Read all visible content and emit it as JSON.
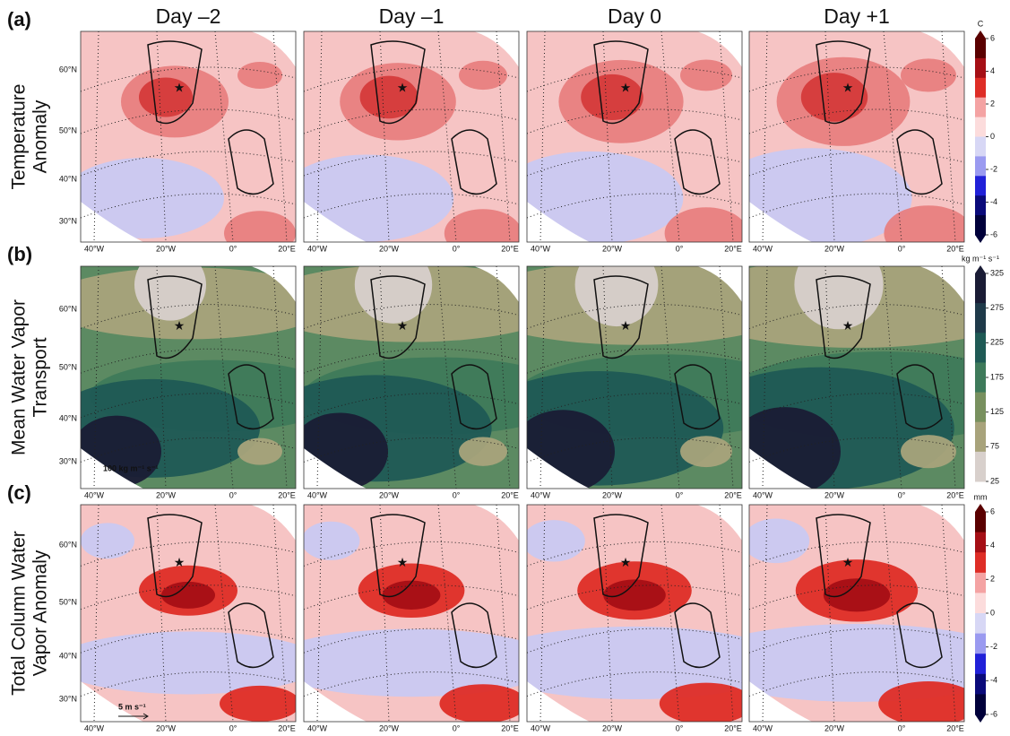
{
  "columns": [
    "Day –2",
    "Day –1",
    "Day 0",
    "Day +1"
  ],
  "rows": [
    {
      "label": "(a)",
      "title": [
        "Temperature",
        "Anomaly"
      ],
      "unit": "C",
      "colorbar_ticks": [
        6,
        4,
        2,
        0,
        -2,
        -4,
        -6
      ]
    },
    {
      "label": "(b)",
      "title": [
        "Mean Water Vapor",
        "Transport"
      ],
      "unit": "kg m⁻¹ s⁻¹",
      "colorbar_ticks": [
        325,
        275,
        225,
        175,
        125,
        75,
        25
      ],
      "scale_arrow": "100 kg m⁻¹ s⁻¹"
    },
    {
      "label": "(c)",
      "title": [
        "Total Column Water",
        "Vapor Anomaly"
      ],
      "unit": "mm",
      "colorbar_ticks": [
        6,
        4,
        2,
        0,
        -2,
        -4,
        -6
      ],
      "scale_arrow": "5 m s⁻¹"
    }
  ],
  "lat_labels": [
    "60°N",
    "50°N",
    "40°N",
    "30°N"
  ],
  "lon_labels": [
    "40°W",
    "20°W",
    "0°",
    "20°E"
  ]
}
